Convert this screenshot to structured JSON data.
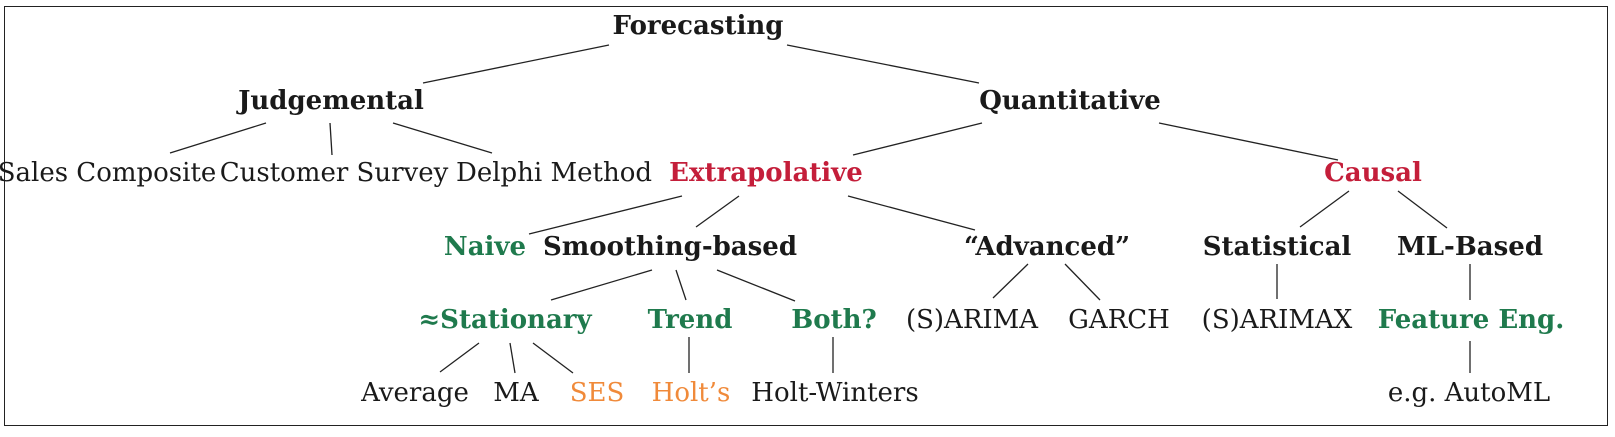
{
  "colors": {
    "text": "#1a1a1a",
    "red": "#c41e3a",
    "green": "#1f7a4d",
    "orange": "#f08a3a",
    "edge": "#222222"
  },
  "nodes": {
    "forecasting": "Forecasting",
    "judgemental": "Judgemental",
    "quantitative": "Quantitative",
    "sales_composite": "Sales Composite",
    "customer_survey": "Customer Survey",
    "delphi_method": "Delphi Method",
    "extrapolative": "Extrapolative",
    "causal": "Causal",
    "naive": "Naive",
    "smoothing_based": "Smoothing-based",
    "advanced": "“Advanced”",
    "statistical": "Statistical",
    "ml_based": "ML-Based",
    "stationary": "≈Stationary",
    "trend": "Trend",
    "both": "Both?",
    "sarima": "(S)ARIMA",
    "garch": "GARCH",
    "sarimax": "(S)ARIMAX",
    "feature_eng": "Feature Eng.",
    "average": "Average",
    "ma": "MA",
    "ses": "SES",
    "holts": "Holt’s",
    "holt_winters": "Holt-Winters",
    "automl": "e.g. AutoML"
  }
}
